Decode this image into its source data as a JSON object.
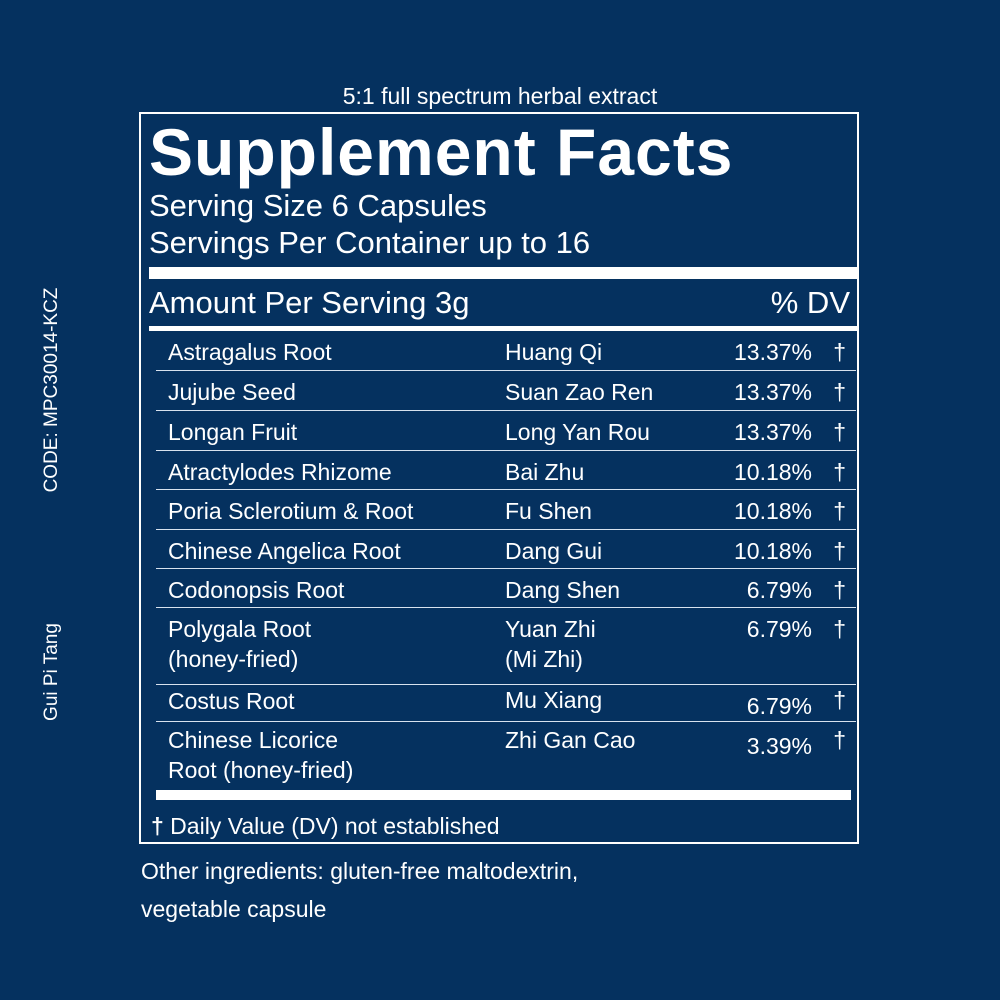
{
  "tagline": "5:1 full spectrum herbal extract",
  "side": {
    "code": "CODE: MPC30014-KCZ",
    "name": "Gui Pi Tang"
  },
  "facts": {
    "title": "Supplement Facts",
    "serving_size": "Serving Size 6 Capsules",
    "servings_per_container": "Servings Per Container up to 16",
    "amount_per_serving": "Amount Per Serving 3g",
    "dv_header": "% DV",
    "ingredients": [
      {
        "name": "Astragalus Root",
        "chinese": "Huang Qi",
        "dv": "13.37%",
        "mark": "†"
      },
      {
        "name": "Jujube Seed",
        "chinese": "Suan Zao Ren",
        "dv": "13.37%",
        "mark": "†"
      },
      {
        "name": "Longan Fruit",
        "chinese": "Long Yan Rou",
        "dv": "13.37%",
        "mark": "†"
      },
      {
        "name": "Atractylodes Rhizome",
        "chinese": "Bai Zhu",
        "dv": "10.18%",
        "mark": "†"
      },
      {
        "name": "Poria Sclerotium & Root",
        "chinese": "Fu Shen",
        "dv": "10.18%",
        "mark": "†"
      },
      {
        "name": "Chinese Angelica Root",
        "chinese": "Dang Gui",
        "dv": "10.18%",
        "mark": "†"
      },
      {
        "name": "Codonopsis Root",
        "chinese": "Dang Shen",
        "dv": "6.79%",
        "mark": "†"
      },
      {
        "name": "Polygala Root",
        "name2": "(honey-fried)",
        "chinese": "Yuan Zhi",
        "chinese2": "(Mi Zhi)",
        "dv": "6.79%",
        "mark": "†"
      },
      {
        "name": "Costus Root",
        "chinese": "Mu Xiang",
        "dv": "6.79%",
        "mark": "†"
      },
      {
        "name": "Chinese Licorice",
        "name2": "Root (honey-fried)",
        "chinese": "Zhi Gan Cao",
        "dv": "3.39%",
        "mark": "†"
      }
    ],
    "dv_note_mark": "†",
    "dv_note_text": " Daily Value (DV) not established"
  },
  "other_ingredients": {
    "line1": "Other ingredients: gluten-free maltodextrin,",
    "line2": "vegetable capsule"
  }
}
